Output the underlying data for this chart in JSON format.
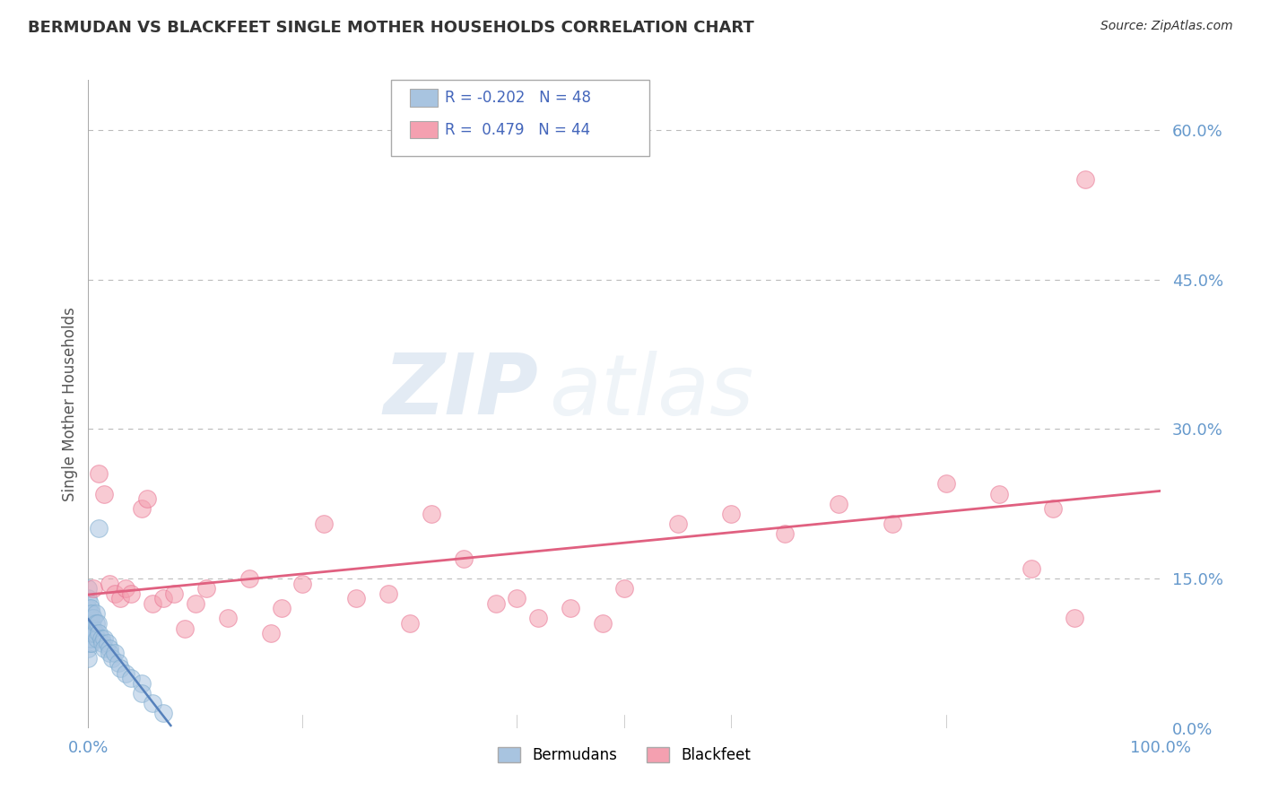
{
  "title": "BERMUDAN VS BLACKFEET SINGLE MOTHER HOUSEHOLDS CORRELATION CHART",
  "source": "Source: ZipAtlas.com",
  "ylabel_label": "Single Mother Households",
  "legend_R": [
    -0.202,
    0.479
  ],
  "legend_N": [
    48,
    44
  ],
  "blue_color": "#A8C4E0",
  "pink_color": "#F4A0B0",
  "blue_edge_color": "#7AAACE",
  "pink_edge_color": "#E87090",
  "blue_line_color": "#5580BB",
  "pink_line_color": "#E06080",
  "watermark_zip": "ZIP",
  "watermark_atlas": "atlas",
  "background_color": "#FFFFFF",
  "grid_color": "#BBBBBB",
  "tick_color": "#6699CC",
  "title_color": "#333333",
  "ylabel_color": "#555555",
  "bermudans_x": [
    0.0,
    0.0,
    0.0,
    0.0,
    0.0,
    0.0,
    0.0,
    0.0,
    0.1,
    0.1,
    0.1,
    0.1,
    0.1,
    0.2,
    0.2,
    0.2,
    0.2,
    0.3,
    0.3,
    0.3,
    0.4,
    0.4,
    0.5,
    0.5,
    0.6,
    0.7,
    0.7,
    0.8,
    0.9,
    1.0,
    1.0,
    1.2,
    1.3,
    1.5,
    1.5,
    1.8,
    2.0,
    2.0,
    2.2,
    2.5,
    2.8,
    3.0,
    3.5,
    4.0,
    5.0,
    5.0,
    6.0,
    7.0
  ],
  "bermudans_y": [
    9.0,
    10.0,
    11.0,
    12.0,
    13.0,
    14.0,
    8.0,
    7.0,
    9.5,
    10.5,
    11.5,
    12.5,
    8.5,
    10.0,
    11.0,
    12.0,
    9.0,
    10.5,
    11.5,
    8.5,
    10.0,
    9.5,
    11.0,
    10.0,
    9.5,
    11.5,
    10.5,
    9.0,
    10.5,
    9.5,
    20.0,
    9.0,
    8.5,
    9.0,
    8.0,
    8.5,
    8.0,
    7.5,
    7.0,
    7.5,
    6.5,
    6.0,
    5.5,
    5.0,
    4.5,
    3.5,
    2.5,
    1.5
  ],
  "blackfeet_x": [
    0.5,
    1.0,
    1.5,
    2.0,
    2.5,
    3.0,
    3.5,
    4.0,
    5.0,
    5.5,
    6.0,
    7.0,
    8.0,
    9.0,
    10.0,
    11.0,
    13.0,
    15.0,
    17.0,
    18.0,
    20.0,
    22.0,
    25.0,
    28.0,
    30.0,
    32.0,
    35.0,
    38.0,
    40.0,
    42.0,
    45.0,
    48.0,
    50.0,
    55.0,
    60.0,
    65.0,
    70.0,
    75.0,
    80.0,
    85.0,
    88.0,
    90.0,
    92.0,
    93.0
  ],
  "blackfeet_y": [
    14.0,
    25.5,
    23.5,
    14.5,
    13.5,
    13.0,
    14.0,
    13.5,
    22.0,
    23.0,
    12.5,
    13.0,
    13.5,
    10.0,
    12.5,
    14.0,
    11.0,
    15.0,
    9.5,
    12.0,
    14.5,
    20.5,
    13.0,
    13.5,
    10.5,
    21.5,
    17.0,
    12.5,
    13.0,
    11.0,
    12.0,
    10.5,
    14.0,
    20.5,
    21.5,
    19.5,
    22.5,
    20.5,
    24.5,
    23.5,
    16.0,
    22.0,
    11.0,
    55.0
  ]
}
